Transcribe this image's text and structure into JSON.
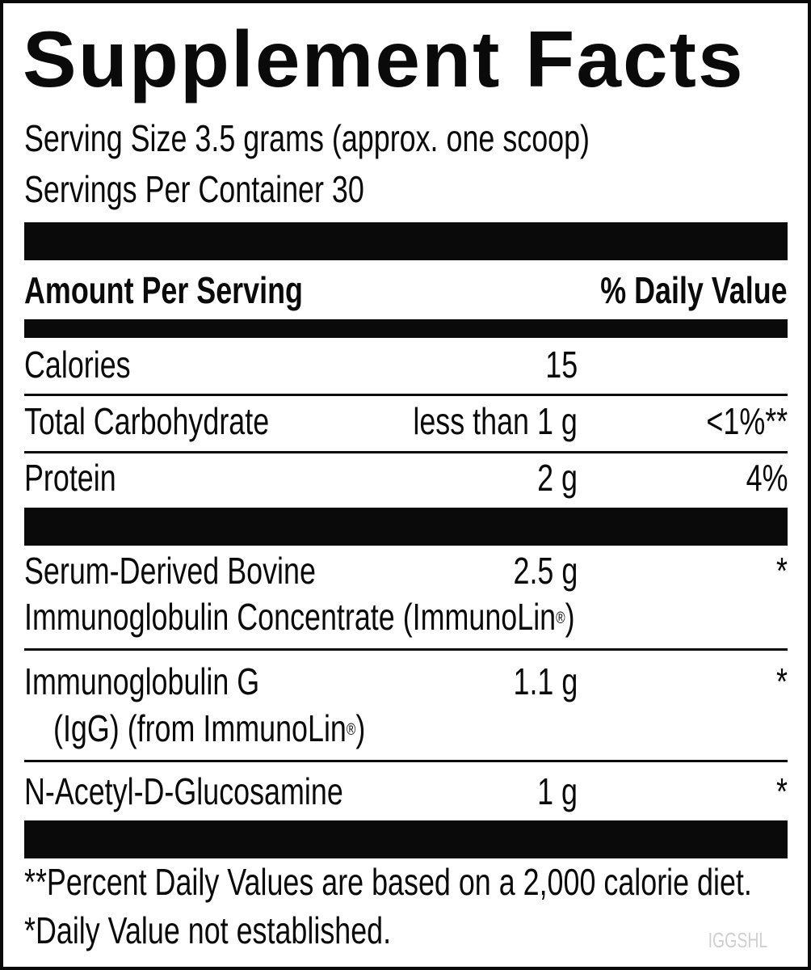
{
  "title": "Supplement Facts",
  "serving_size": "Serving Size 3.5 grams (approx. one scoop)",
  "servings_per_container": "Servings Per Container 30",
  "header": {
    "amount": "Amount Per Serving",
    "dv": "% Daily Value"
  },
  "rows": [
    {
      "name": "Calories",
      "amount": "15",
      "dv": ""
    },
    {
      "name": "Total Carbohydrate",
      "amount": "less than 1 g",
      "dv": "<1%**"
    },
    {
      "name": "Protein",
      "amount": "2 g",
      "dv": "4%"
    },
    {
      "name": "Serum-Derived Bovine",
      "name2": "Immunoglobulin Concentrate (ImmunoLin",
      "reg": "®",
      "close": ")",
      "amount": "2.5 g",
      "dv": "*"
    },
    {
      "name": "Immunoglobulin G",
      "name2": "(IgG) (from ImmunoLin",
      "reg": "®",
      "close": ")",
      "amount": "1.1 g",
      "dv": "*"
    },
    {
      "name": "N-Acetyl-D-Glucosamine",
      "amount": "1 g",
      "dv": "*"
    }
  ],
  "footnotes": [
    "**Percent Daily Values are based on a 2,000 calorie diet.",
    "*Daily Value not established."
  ],
  "code": "IGGSHL"
}
